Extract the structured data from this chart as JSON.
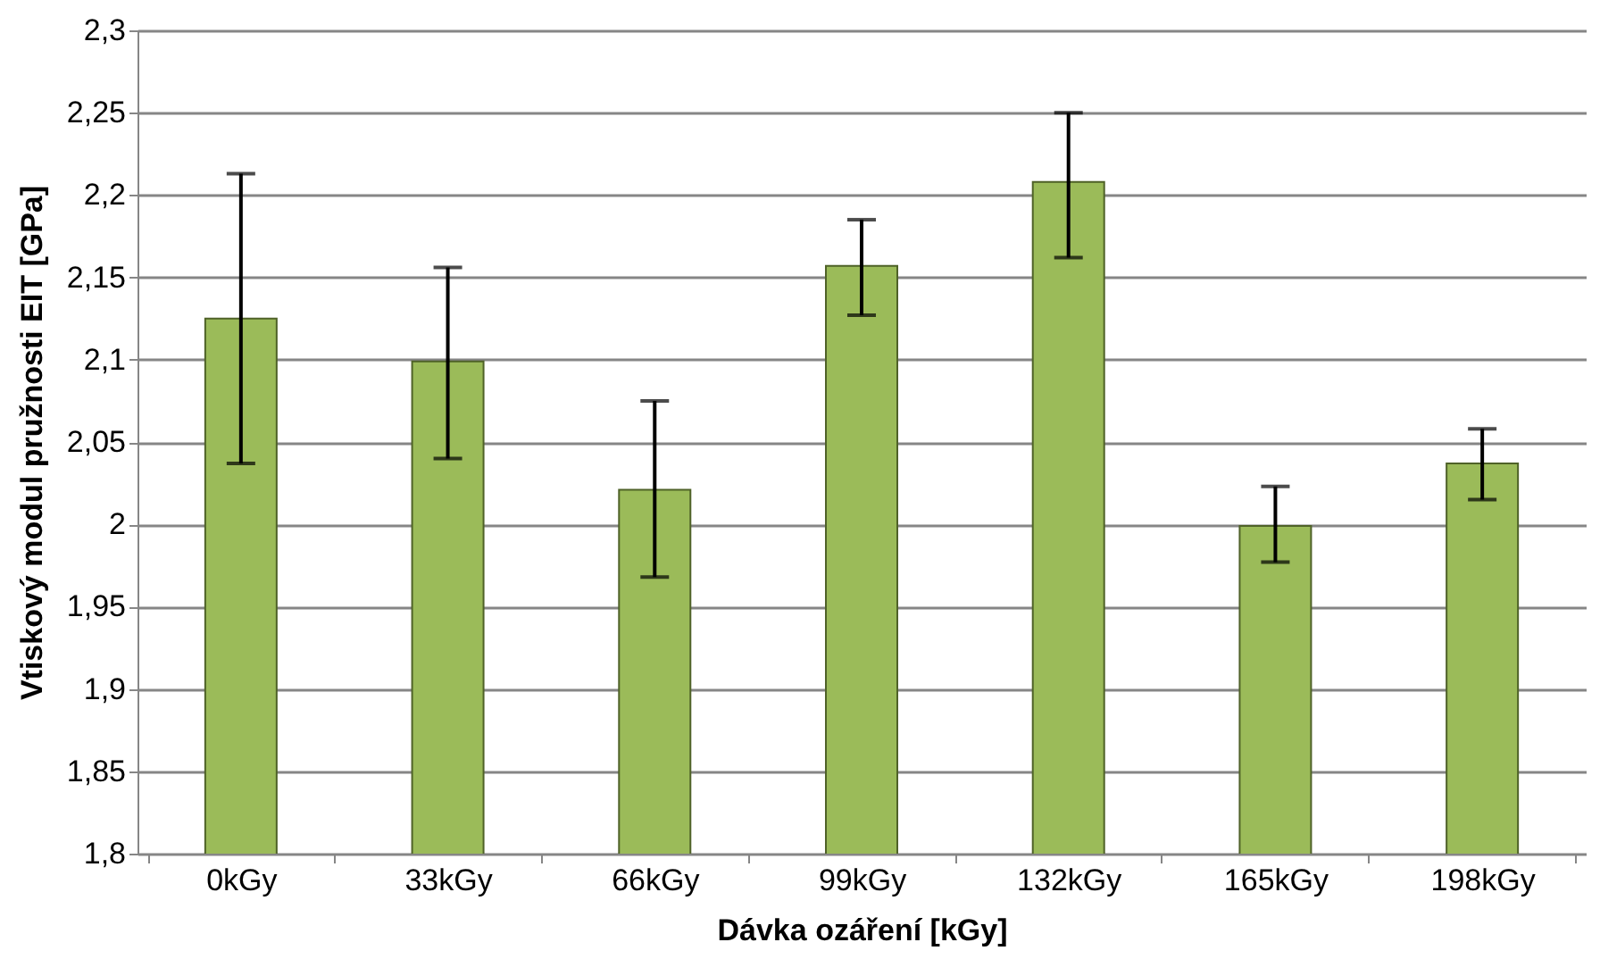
{
  "chart_data": {
    "type": "bar",
    "xlabel": "Dávka ozáření [kGy]",
    "ylabel": "Vtiskový modul pružnosti EIT [GPa]",
    "categories": [
      "0kGy",
      "33kGy",
      "66kGy",
      "99kGy",
      "132kGy",
      "165kGy",
      "198kGy"
    ],
    "values": [
      2.125,
      2.099,
      2.021,
      2.157,
      2.208,
      1.999,
      2.037
    ],
    "errors": [
      [
        2.037,
        2.213
      ],
      [
        2.04,
        2.156
      ],
      [
        1.968,
        2.075
      ],
      [
        2.127,
        2.185
      ],
      [
        2.162,
        2.25
      ],
      [
        1.977,
        2.023
      ],
      [
        2.015,
        2.058
      ]
    ],
    "color": "#9bbb59",
    "ylim": [
      1.8,
      2.3
    ],
    "yticks": [
      {
        "value": 1.8,
        "label": "1,8"
      },
      {
        "value": 1.85,
        "label": "1,85"
      },
      {
        "value": 1.9,
        "label": "1,9"
      },
      {
        "value": 1.95,
        "label": "1,95"
      },
      {
        "value": 2,
        "label": "2"
      },
      {
        "value": 2.05,
        "label": "2,05"
      },
      {
        "value": 2.1,
        "label": "2,1"
      },
      {
        "value": 2.15,
        "label": "2,15"
      },
      {
        "value": 2.2,
        "label": "2,2"
      },
      {
        "value": 2.25,
        "label": "2,25"
      },
      {
        "value": 2.3,
        "label": "2,3"
      }
    ],
    "grid": "y"
  }
}
